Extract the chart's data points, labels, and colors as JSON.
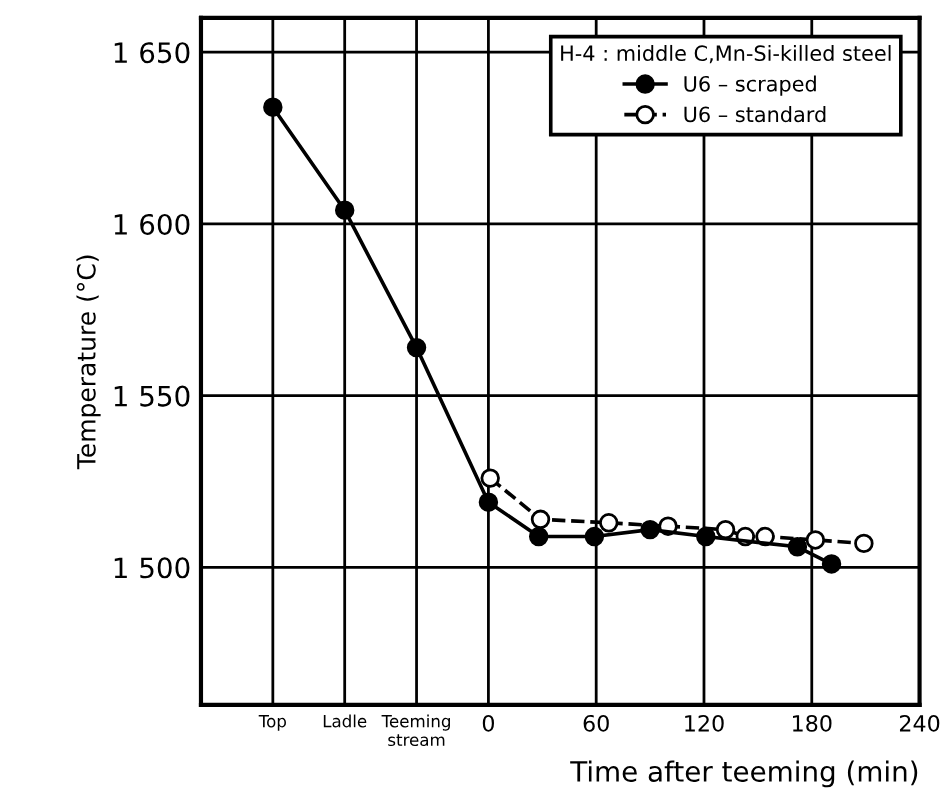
{
  "chart_data": {
    "type": "line",
    "xlabel": "Time after teeming (min)",
    "ylabel": "Temperature (°C)",
    "legend_title": "H-4 : middle C,Mn-Si-killed steel",
    "legend": "top right",
    "grid": true,
    "marker": "circle",
    "xlim": [
      -160,
      240
    ],
    "xticks": [
      {
        "value": -120,
        "label": "Top"
      },
      {
        "value": -80,
        "label": "Ladle"
      },
      {
        "value": -40,
        "label": "Teeming\nstream"
      },
      0,
      60,
      120,
      180,
      240
    ],
    "ylim": [
      1460,
      1660
    ],
    "yticks": [
      {
        "value": 1500,
        "label": "1 500"
      },
      {
        "value": 1550,
        "label": "1 550"
      },
      {
        "value": 1600,
        "label": "1 600"
      },
      {
        "value": 1650,
        "label": "1 650"
      }
    ],
    "series": [
      {
        "name": "U6 – scraped",
        "color": "#000000",
        "line_style": "solid",
        "x": [
          -120,
          -80,
          -40,
          0,
          28,
          59,
          90,
          121,
          172,
          191
        ],
        "values": [
          1634,
          1604,
          1564,
          1519,
          1509,
          1509,
          1511,
          1509,
          1506,
          1501
        ]
      },
      {
        "name": "U6 – standard",
        "color": "#000000",
        "line_style": "dashed",
        "x": [
          1,
          29,
          67,
          100,
          132,
          143,
          154,
          182,
          209
        ],
        "values": [
          1526,
          1514,
          1513,
          1512,
          1511,
          1509,
          1509,
          1508,
          1507
        ]
      }
    ]
  }
}
